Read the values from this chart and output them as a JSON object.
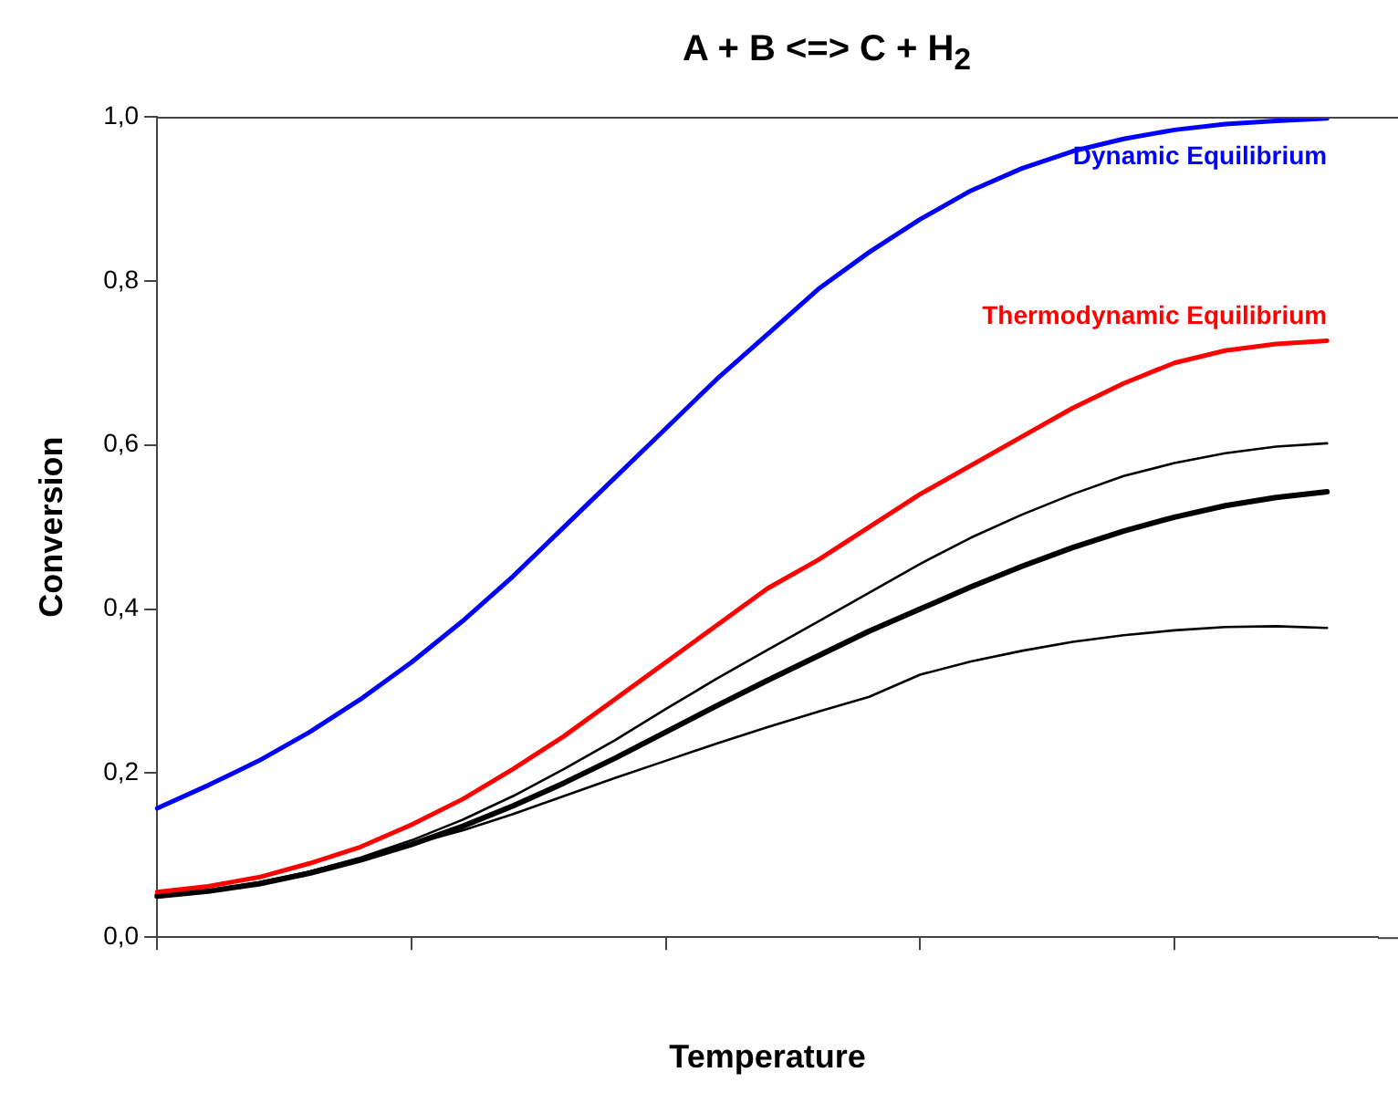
{
  "chart_data": {
    "type": "line",
    "title": "A + B <=> C + H$_{2}$",
    "xlabel": "Temperature",
    "ylabel": "Conversion",
    "categories": [
      null,
      null,
      null,
      null,
      null,
      null,
      null,
      null,
      null,
      null,
      null,
      null,
      null,
      null,
      null,
      null,
      null,
      null,
      null,
      null,
      null,
      null,
      null,
      null,
      null
    ],
    "ylim": [
      0,
      1
    ],
    "yticks": [
      {
        "value": 0,
        "label": "0,0"
      },
      {
        "value": 0.2,
        "label": "0,2"
      },
      {
        "value": 0.4,
        "label": "0,4"
      },
      {
        "value": 0.6,
        "label": "0,6"
      },
      {
        "value": 0.8,
        "label": "0,8"
      },
      {
        "value": 1,
        "label": "1,0"
      }
    ],
    "grid": false,
    "legend": false,
    "marker": "none",
    "line_style": "solid",
    "series": [
      {
        "name": "Dynamic Equilibrium",
        "color": "#0000ff",
        "values": [
          0.157,
          0.185,
          0.215,
          0.25,
          0.29,
          0.335,
          0.385,
          0.44,
          0.5,
          0.56,
          0.62,
          0.68,
          0.735,
          0.79,
          0.835,
          0.875,
          0.91,
          0.937,
          0.958,
          0.973,
          0.984,
          0.991,
          0.995,
          0.998,
          null
        ]
      },
      {
        "name": "Thermodynamic Equilibrium",
        "color": "#ff0000",
        "values": [
          0.055,
          0.062,
          0.073,
          0.09,
          0.11,
          0.137,
          0.168,
          0.205,
          0.245,
          0.29,
          0.335,
          0.38,
          0.425,
          0.46,
          0.5,
          0.54,
          0.575,
          0.61,
          0.645,
          0.675,
          0.7,
          0.715,
          0.723,
          0.727,
          null
        ]
      },
      {
        "color": "#000000",
        "values": [
          0.05,
          0.057,
          0.067,
          0.08,
          0.097,
          0.118,
          0.143,
          0.172,
          0.205,
          0.24,
          0.278,
          0.315,
          0.35,
          0.385,
          0.42,
          0.455,
          0.487,
          0.515,
          0.54,
          0.562,
          0.578,
          0.59,
          0.598,
          0.602,
          null
        ]
      },
      {
        "color": "#000000",
        "values": [
          0.05,
          0.056,
          0.065,
          0.078,
          0.094,
          0.113,
          0.135,
          0.16,
          0.188,
          0.218,
          0.25,
          0.282,
          0.313,
          0.343,
          0.373,
          0.4,
          0.427,
          0.452,
          0.475,
          0.495,
          0.512,
          0.526,
          0.536,
          0.543,
          null
        ]
      },
      {
        "color": "#000000",
        "values": [
          0.05,
          0.056,
          0.064,
          0.08,
          0.096,
          0.113,
          0.13,
          0.15,
          0.172,
          0.194,
          0.215,
          0.236,
          0.256,
          0.275,
          0.293,
          0.32,
          0.336,
          0.349,
          0.36,
          0.368,
          0.374,
          0.378,
          0.379,
          0.377,
          null
        ]
      }
    ]
  }
}
